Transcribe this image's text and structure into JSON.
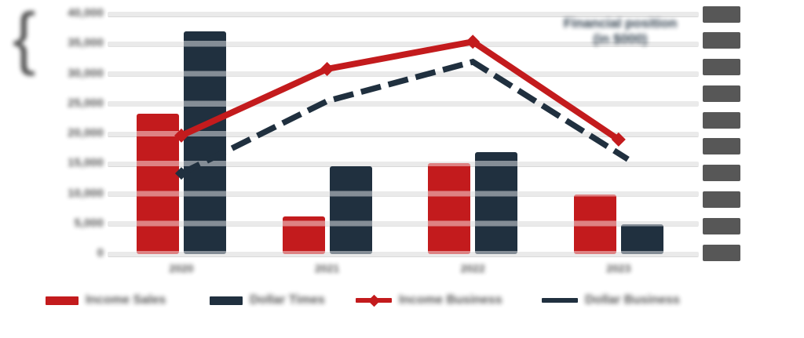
{
  "note": "Source screenshot: every text label is blurred/redacted and illegible; placeholder strings below only reproduce smudge length/shape, not readable content.",
  "annotation": {
    "redacted": true,
    "line1": "Financial position",
    "line2": "(in $000)",
    "color": "#20303f"
  },
  "axes": {
    "left": {
      "redacted": true,
      "labels": [
        "40,000",
        "35,000",
        "30,000",
        "25,000",
        "20,000",
        "15,000",
        "10,000",
        "5,000",
        "0"
      ],
      "brace_glyph": "{"
    },
    "right": {
      "redacted": true,
      "style": "solid-gray-blocks",
      "block_count": 10
    },
    "x": {
      "redacted": true,
      "labels": [
        "2020",
        "2021",
        "2022",
        "2023"
      ]
    }
  },
  "chart_data": {
    "type": "combo-bar-line",
    "title_redacted": true,
    "categories": [
      "2020",
      "2021",
      "2022",
      "2023"
    ],
    "value_scale": "gridline intervals (axis text illegible); left axis has 9 ticks = 8 intervals, baseline 0 to top 8",
    "ylim": [
      0,
      8
    ],
    "left_axis_tick_count": 9,
    "right_axis_tick_count": 10,
    "grid": "horizontal thick light-gray stripes",
    "legend_position": "bottom",
    "series": [
      {
        "id": "bars-red",
        "type": "bar",
        "color": "#c31b1d",
        "values": [
          4.68,
          1.26,
          3.03,
          1.99
        ]
      },
      {
        "id": "bars-navy",
        "type": "bar",
        "color": "#20303f",
        "values": [
          7.42,
          2.93,
          3.4,
          0.99
        ]
      },
      {
        "id": "line-red",
        "type": "line",
        "color": "#c31b1d",
        "marker": "diamond-all-points",
        "values": [
          3.95,
          6.17,
          7.08,
          3.82
        ]
      },
      {
        "id": "line-navy",
        "type": "line",
        "color": "#20303f",
        "dashed": true,
        "marker": "diamond-first-point",
        "end_dx": 12,
        "values": [
          2.69,
          5.1,
          6.41,
          3.16
        ]
      }
    ]
  },
  "legend": {
    "redacted_labels": true,
    "items": [
      {
        "label": "Income Sales",
        "swatch": "bar",
        "color": "#c31b1d"
      },
      {
        "label": "Dollar Times",
        "swatch": "bar",
        "color": "#20303f"
      },
      {
        "label": "Income Business",
        "swatch": "line-diamond",
        "color": "#c31b1d"
      },
      {
        "label": "Dollar Business",
        "swatch": "line",
        "color": "#20303f"
      }
    ]
  },
  "colors": {
    "red": "#c31b1d",
    "navy": "#20303f",
    "gridline": "#d9d9d9",
    "label_gray": "#4c4c4c",
    "redaction_block_gray": "#575757",
    "background": "#ffffff"
  }
}
